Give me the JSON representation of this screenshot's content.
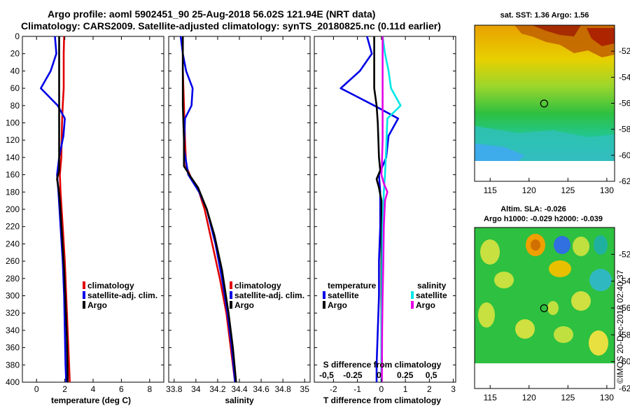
{
  "title_line1": "Argo profile: aoml 5902451_90 25-Aug-2018 56.02S 121.94E (NRT data)",
  "title_line2": "Climatology: CARS2009. Satellite-adjusted climatology: synTS_20180825.nc (0.11d earlier)",
  "colors": {
    "climatology": "#e00000",
    "satellite": "#0000e6",
    "argo": "#000000",
    "sat_salinity": "#00e6e6",
    "clim_salinity": "#e600e6"
  },
  "chart_data": [
    {
      "type": "line",
      "name": "temperature",
      "xlabel": "temperature (deg C)",
      "ylabel": "",
      "xlim": [
        -1,
        9
      ],
      "ylim": [
        400,
        0
      ],
      "xticks": [
        0,
        2,
        4,
        6,
        8
      ],
      "xtick_labels": [
        "0",
        "2",
        "4",
        "6",
        "8"
      ],
      "yticks": [
        0,
        20,
        40,
        60,
        80,
        100,
        120,
        140,
        160,
        180,
        200,
        220,
        240,
        260,
        280,
        300,
        320,
        340,
        360,
        380,
        400
      ],
      "ytick_labels": [
        "0",
        "20",
        "40",
        "60",
        "80",
        "100",
        "120",
        "140",
        "160",
        "180",
        "200",
        "220",
        "240",
        "260",
        "280",
        "300",
        "320",
        "340",
        "360",
        "380",
        "400"
      ],
      "legend": [
        "climatology",
        "satellite-adj. clim.",
        "Argo"
      ],
      "series": [
        {
          "name": "climatology",
          "color": "#e00000",
          "points": [
            [
              1.95,
              0
            ],
            [
              1.92,
              20
            ],
            [
              1.92,
              60
            ],
            [
              1.85,
              80
            ],
            [
              1.8,
              100
            ],
            [
              1.75,
              140
            ],
            [
              1.65,
              160
            ],
            [
              1.7,
              180
            ],
            [
              1.85,
              220
            ],
            [
              2.0,
              260
            ],
            [
              2.1,
              300
            ],
            [
              2.2,
              340
            ],
            [
              2.3,
              380
            ],
            [
              2.35,
              400
            ]
          ]
        },
        {
          "name": "satellite-adj. clim.",
          "color": "#0000e6",
          "points": [
            [
              1.3,
              0
            ],
            [
              1.4,
              20
            ],
            [
              1.0,
              40
            ],
            [
              0.3,
              60
            ],
            [
              1.5,
              80
            ],
            [
              2.0,
              95
            ],
            [
              1.9,
              115
            ],
            [
              1.6,
              140
            ],
            [
              1.45,
              160
            ],
            [
              1.55,
              180
            ],
            [
              1.7,
              220
            ],
            [
              1.85,
              260
            ],
            [
              1.95,
              300
            ],
            [
              2.0,
              340
            ],
            [
              2.05,
              380
            ],
            [
              2.1,
              400
            ]
          ]
        },
        {
          "name": "Argo",
          "color": "#000000",
          "points": [
            [
              1.6,
              0
            ],
            [
              1.6,
              20
            ],
            [
              1.6,
              70
            ],
            [
              1.6,
              100
            ],
            [
              1.6,
              140
            ],
            [
              1.6,
              155
            ],
            [
              1.45,
              165
            ],
            [
              1.55,
              175
            ],
            [
              1.65,
              190
            ],
            [
              1.8,
              230
            ],
            [
              1.95,
              270
            ],
            [
              2.05,
              310
            ],
            [
              2.15,
              350
            ],
            [
              2.2,
              390
            ],
            [
              2.2,
              400
            ]
          ]
        }
      ]
    },
    {
      "type": "line",
      "name": "salinity",
      "xlabel": "salinity",
      "ylabel": "",
      "xlim": [
        33.75,
        35.05
      ],
      "ylim": [
        400,
        0
      ],
      "xticks": [
        33.8,
        34,
        34.2,
        34.4,
        34.6,
        34.8,
        35
      ],
      "xtick_labels": [
        "33.8",
        "34",
        "34.2",
        "34.4",
        "34.6",
        "34.8",
        "35"
      ],
      "legend": [
        "climatology",
        "satellite-adj. clim.",
        "Argo"
      ],
      "series": [
        {
          "name": "climatology",
          "color": "#e00000",
          "points": [
            [
              33.88,
              0
            ],
            [
              33.88,
              40
            ],
            [
              33.89,
              80
            ],
            [
              33.9,
              120
            ],
            [
              33.91,
              150
            ],
            [
              33.96,
              165
            ],
            [
              34.03,
              180
            ],
            [
              34.08,
              200
            ],
            [
              34.15,
              240
            ],
            [
              34.22,
              280
            ],
            [
              34.28,
              320
            ],
            [
              34.32,
              360
            ],
            [
              34.36,
              400
            ]
          ]
        },
        {
          "name": "satellite-adj. clim.",
          "color": "#0000e6",
          "points": [
            [
              33.86,
              0
            ],
            [
              33.88,
              20
            ],
            [
              33.91,
              40
            ],
            [
              33.97,
              60
            ],
            [
              33.96,
              80
            ],
            [
              33.9,
              95
            ],
            [
              33.89,
              130
            ],
            [
              33.93,
              160
            ],
            [
              34.03,
              180
            ],
            [
              34.1,
              200
            ],
            [
              34.18,
              240
            ],
            [
              34.24,
              280
            ],
            [
              34.29,
              320
            ],
            [
              34.33,
              360
            ],
            [
              34.36,
              400
            ]
          ]
        },
        {
          "name": "Argo",
          "color": "#000000",
          "points": [
            [
              33.88,
              0
            ],
            [
              33.88,
              40
            ],
            [
              33.88,
              80
            ],
            [
              33.89,
              120
            ],
            [
              33.89,
              150
            ],
            [
              33.95,
              162
            ],
            [
              34.02,
              175
            ],
            [
              34.1,
              200
            ],
            [
              34.17,
              230
            ],
            [
              34.24,
              270
            ],
            [
              34.3,
              320
            ],
            [
              34.34,
              360
            ],
            [
              34.37,
              400
            ]
          ]
        }
      ]
    },
    {
      "type": "line",
      "name": "differences",
      "xlabel": "T difference from climatology",
      "ylabel": "",
      "title_bottom": "S difference from climatology",
      "xlim": [
        -2.8,
        3.1
      ],
      "ylim": [
        400,
        0
      ],
      "xticks": [
        -2,
        -1,
        0,
        1,
        2,
        3
      ],
      "xtick_labels": [
        "-2",
        "-1",
        "0",
        "1",
        "2",
        "3"
      ],
      "sticks": [
        -0.5,
        -0.25,
        0,
        0.25,
        0.5
      ],
      "stick_labels": [
        "-0,5",
        "-0.25",
        "0",
        "0.25",
        "0,5"
      ],
      "legend_left_title": "temperature",
      "legend_right_title": "salinity",
      "legend": [
        "satellite",
        "Argo",
        "satellite",
        "Argo"
      ],
      "series": [
        {
          "name": "T satellite",
          "color": "#0000e6",
          "points": [
            [
              -0.6,
              0
            ],
            [
              -0.4,
              20
            ],
            [
              -0.9,
              40
            ],
            [
              -1.7,
              60
            ],
            [
              -0.3,
              80
            ],
            [
              0.7,
              95
            ],
            [
              0.3,
              115
            ],
            [
              0.2,
              140
            ],
            [
              -0.1,
              160
            ],
            [
              -0.05,
              180
            ],
            [
              -0.05,
              220
            ],
            [
              -0.1,
              260
            ],
            [
              -0.1,
              300
            ],
            [
              -0.15,
              340
            ],
            [
              -0.2,
              380
            ],
            [
              -0.2,
              400
            ]
          ]
        },
        {
          "name": "T Argo",
          "color": "#000000",
          "points": [
            [
              -0.3,
              0
            ],
            [
              -0.3,
              30
            ],
            [
              -0.3,
              60
            ],
            [
              -0.2,
              80
            ],
            [
              -0.15,
              100
            ],
            [
              -0.1,
              140
            ],
            [
              -0.05,
              155
            ],
            [
              -0.2,
              165
            ],
            [
              -0.1,
              175
            ],
            [
              0.0,
              190
            ],
            [
              0.0,
              230
            ],
            [
              0.0,
              270
            ],
            [
              0.0,
              310
            ],
            [
              0.0,
              350
            ],
            [
              0.0,
              400
            ]
          ]
        },
        {
          "name": "S satellite",
          "color": "#00e6e6",
          "points": [
            [
              0.05,
              0
            ],
            [
              0.15,
              20
            ],
            [
              0.3,
              40
            ],
            [
              0.4,
              60
            ],
            [
              0.8,
              80
            ],
            [
              0.25,
              95
            ],
            [
              0.2,
              130
            ],
            [
              0.15,
              160
            ],
            [
              0.1,
              180
            ],
            [
              0.05,
              220
            ],
            [
              0.03,
              260
            ],
            [
              0.02,
              300
            ],
            [
              0.0,
              340
            ],
            [
              0.0,
              400
            ]
          ]
        },
        {
          "name": "S Argo",
          "color": "#e600e6",
          "points": [
            [
              0.05,
              0
            ],
            [
              0.05,
              40
            ],
            [
              0.05,
              80
            ],
            [
              0.05,
              120
            ],
            [
              0.02,
              150
            ],
            [
              0.0,
              160
            ],
            [
              0.1,
              170
            ],
            [
              0.25,
              180
            ],
            [
              0.15,
              190
            ],
            [
              0.1,
              220
            ],
            [
              0.08,
              260
            ],
            [
              0.05,
              300
            ],
            [
              0.03,
              340
            ],
            [
              0.02,
              400
            ]
          ]
        }
      ]
    },
    {
      "type": "heatmap",
      "name": "sat_sst_map",
      "title": "sat. SST: 1.36 Argo: 1.56",
      "xlim": [
        113,
        131
      ],
      "ylim": [
        -62,
        -50
      ],
      "xticks": [
        115,
        120,
        125,
        130
      ],
      "xtick_labels": [
        "115",
        "120",
        "125",
        "130"
      ],
      "yticks": [
        -52,
        -54,
        -56,
        -58,
        -60,
        -62
      ],
      "ytick_labels": [
        "-52",
        "-54",
        "-56",
        "-58",
        "-60",
        "-62"
      ],
      "marker": {
        "lon": 121.94,
        "lat": -56.02
      }
    },
    {
      "type": "heatmap",
      "name": "altim_sla_map",
      "title_line1": "Altim. SLA: -0.026",
      "title_line2": "Argo h1000: -0.029 h2000: -0.039",
      "xlim": [
        113,
        131
      ],
      "ylim": [
        -62,
        -50
      ],
      "xticks": [
        115,
        120,
        125,
        130
      ],
      "xtick_labels": [
        "115",
        "120",
        "125",
        "130"
      ],
      "yticks": [
        -52,
        -54,
        -56,
        -58,
        -60,
        -62
      ],
      "ytick_labels": [
        "-52",
        "-54",
        "-56",
        "-58",
        "-60",
        "-62"
      ],
      "marker": {
        "lon": 121.94,
        "lat": -56.02
      }
    }
  ],
  "watermark": "©IMOS 20-Dec-2018 02:40:37"
}
